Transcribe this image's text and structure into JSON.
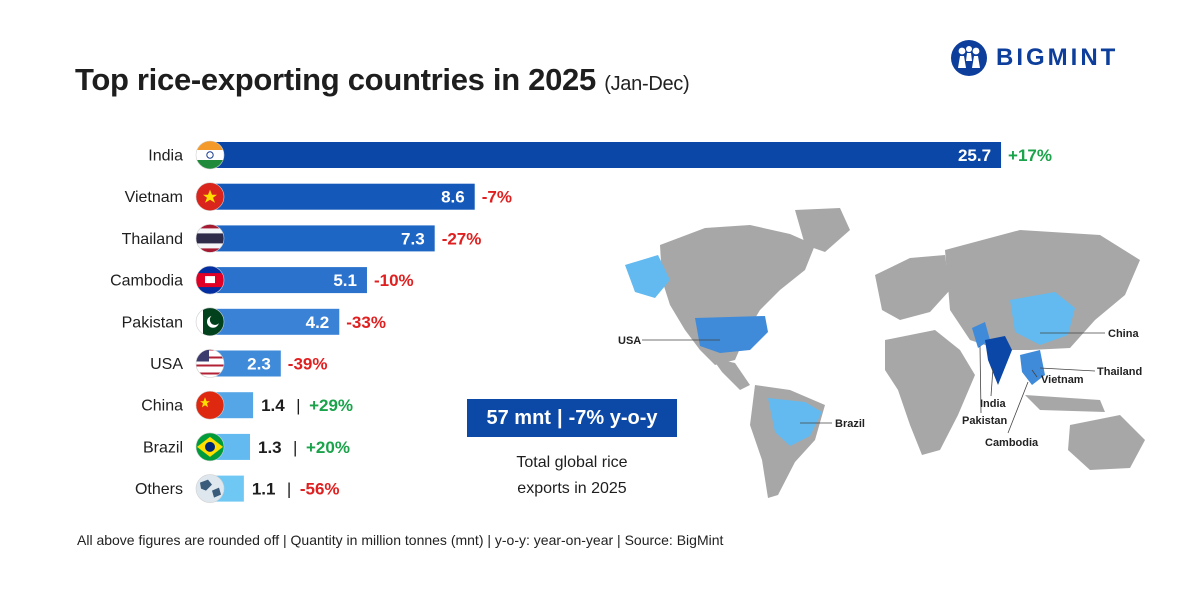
{
  "title": "Top rice-exporting countries in 2025",
  "title_period": "(Jan-Dec)",
  "logo": {
    "wordmark": "BIGMINT",
    "icon": "bigmint-logo-icon"
  },
  "chart_data": {
    "type": "bar",
    "orientation": "horizontal",
    "unit": "million tonnes (mnt)",
    "categories": [
      "India",
      "Vietnam",
      "Thailand",
      "Cambodia",
      "Pakistan",
      "USA",
      "China",
      "Brazil",
      "Others"
    ],
    "values": [
      25.7,
      8.6,
      7.3,
      5.1,
      4.2,
      2.3,
      1.4,
      1.3,
      1.1
    ],
    "value_labels": [
      "25.7",
      "8.6",
      "7.3",
      "5.1",
      "4.2",
      "2.3",
      "1.4",
      "1.3",
      "1.1"
    ],
    "yoy_labels": [
      "+17%",
      "-7%",
      "-27%",
      "-10%",
      "-33%",
      "-39%",
      "+29%",
      "+20%",
      "-56%"
    ],
    "yoy_values": [
      17,
      -7,
      -27,
      -10,
      -33,
      -39,
      29,
      20,
      -56
    ],
    "flags": [
      "india-flag-icon",
      "vietnam-flag-icon",
      "thailand-flag-icon",
      "cambodia-flag-icon",
      "pakistan-flag-icon",
      "usa-flag-icon",
      "china-flag-icon",
      "brazil-flag-icon",
      "globe-icon"
    ],
    "bar_colors": [
      "#0b47a6",
      "#1459b9",
      "#1e66c4",
      "#2b72cc",
      "#3a82d6",
      "#3f8ad9",
      "#54a6e7",
      "#62baf0",
      "#6fc7f3"
    ],
    "positive_color": "#1aa34a",
    "negative_color": "#e02020",
    "xlim": [
      0,
      26
    ]
  },
  "map": {
    "labels": [
      "USA",
      "China",
      "Thailand",
      "Vietnam",
      "Brazil",
      "India",
      "Pakistan",
      "Cambodia"
    ],
    "colors": {
      "land": "#a7a7a7",
      "exporter_dark": "#0b47a6",
      "exporter_mid": "#3f8ad9",
      "exporter_light": "#62baf0"
    }
  },
  "summary": {
    "total": "57 mnt",
    "change": "-7% y-o-y",
    "separator": "|",
    "caption_line1": "Total global rice",
    "caption_line2": "exports in 2025"
  },
  "footnote": "All above figures are rounded off | Quantity in million tonnes (mnt) | y-o-y: year-on-year | Source: BigMint"
}
